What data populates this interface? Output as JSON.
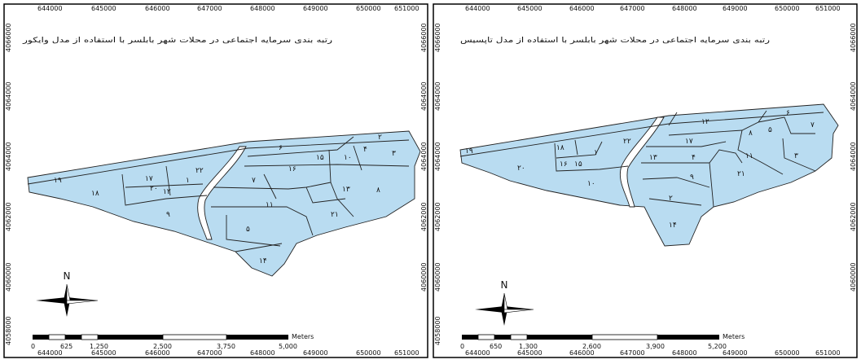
{
  "maps": [
    {
      "title": "رتبه بندی سرمایه اجتماعی در محلات شهر بابلسر با استفاده از مدل وایکور",
      "x_ticks": [
        "644000",
        "645000",
        "646000",
        "647000",
        "648000",
        "649000",
        "650000",
        "651000"
      ],
      "y_ticks": [
        "4066000",
        "4066000",
        "4064000",
        "4064000",
        "4062000",
        "4062000",
        "4060000",
        "4058000"
      ],
      "north_label": "N",
      "scale_unit": "Meters",
      "scale_labels": [
        "0",
        "625",
        "1,250",
        "2,500",
        "3,750",
        "5,000"
      ],
      "labels": [
        "۲",
        "۳",
        "۴",
        "۱۵",
        "۱۰",
        "۱۶",
        "۷",
        "۲۲",
        "۱",
        "۱۷",
        "۲۰",
        "۱۲",
        "۱۹",
        "۱۸",
        "۶",
        "۱۳",
        "۸",
        "۲۱",
        "۱۱",
        "۹",
        "۵",
        "۱۴"
      ]
    },
    {
      "title": "رتبه بندی سرمایه اجتماعی در محلات شهر بابلسر با استفاده از مدل تاپسیس",
      "x_ticks": [
        "644000",
        "645000",
        "646000",
        "647000",
        "648000",
        "649000",
        "650000",
        "651000"
      ],
      "y_ticks": [
        "4066000",
        "4066000",
        "4064000",
        "4064000",
        "4062000",
        "4062000",
        "4060000",
        "4058000"
      ],
      "north_label": "N",
      "scale_unit": "Meters",
      "scale_labels": [
        "0",
        "650",
        "1,300",
        "2,600",
        "3,900",
        "5,200"
      ],
      "labels": [
        "۶",
        "۷",
        "۱۲",
        "۸",
        "۵",
        "۲۲",
        "۱۷",
        "۱۸",
        "۱",
        "۱۹",
        "۱۱",
        "۳",
        "۱۶",
        "۱۵",
        "۱۳",
        "۴",
        "۲۰",
        "۲۱",
        "۹",
        "۱۰",
        "۲",
        "۱۴"
      ]
    }
  ]
}
